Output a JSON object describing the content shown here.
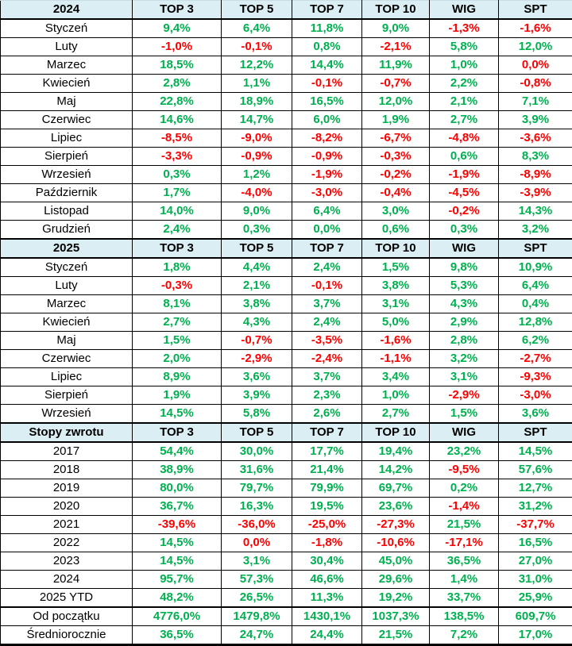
{
  "colors": {
    "positive": "#00B050",
    "negative": "#FF0000",
    "header_background": "#DAEEF3",
    "grid": "#000000"
  },
  "chart_data": {
    "type": "table",
    "value_columns": [
      "TOP 3",
      "TOP 5",
      "TOP 7",
      "TOP 10",
      "WIG",
      "SPT"
    ],
    "sections": [
      {
        "header": "2024",
        "rows": [
          {
            "label": "Styczeń",
            "values": [
              "9,4%",
              "6,4%",
              "11,8%",
              "9,0%",
              "-1,3%",
              "-1,6%"
            ],
            "colors": [
              "g",
              "g",
              "g",
              "g",
              "r",
              "r"
            ]
          },
          {
            "label": "Luty",
            "values": [
              "-1,0%",
              "-0,1%",
              "0,8%",
              "-2,1%",
              "5,8%",
              "12,0%"
            ],
            "colors": [
              "r",
              "r",
              "g",
              "r",
              "g",
              "g"
            ]
          },
          {
            "label": "Marzec",
            "values": [
              "18,5%",
              "12,2%",
              "14,4%",
              "11,9%",
              "1,0%",
              "0,0%"
            ],
            "colors": [
              "g",
              "g",
              "g",
              "g",
              "g",
              "r"
            ]
          },
          {
            "label": "Kwiecień",
            "values": [
              "2,8%",
              "1,1%",
              "-0,1%",
              "-0,7%",
              "2,2%",
              "-0,8%"
            ],
            "colors": [
              "g",
              "g",
              "r",
              "r",
              "g",
              "r"
            ]
          },
          {
            "label": "Maj",
            "values": [
              "22,8%",
              "18,9%",
              "16,5%",
              "12,0%",
              "2,1%",
              "7,1%"
            ],
            "colors": [
              "g",
              "g",
              "g",
              "g",
              "g",
              "g"
            ]
          },
          {
            "label": "Czerwiec",
            "values": [
              "14,6%",
              "14,7%",
              "6,0%",
              "1,9%",
              "2,7%",
              "3,9%"
            ],
            "colors": [
              "g",
              "g",
              "g",
              "g",
              "g",
              "g"
            ]
          },
          {
            "label": "Lipiec",
            "values": [
              "-8,5%",
              "-9,0%",
              "-8,2%",
              "-6,7%",
              "-4,8%",
              "-3,6%"
            ],
            "colors": [
              "r",
              "r",
              "r",
              "r",
              "r",
              "r"
            ]
          },
          {
            "label": "Sierpień",
            "values": [
              "-3,3%",
              "-0,9%",
              "-0,9%",
              "-0,3%",
              "0,6%",
              "8,3%"
            ],
            "colors": [
              "r",
              "r",
              "r",
              "r",
              "g",
              "g"
            ]
          },
          {
            "label": "Wrzesień",
            "values": [
              "0,3%",
              "1,2%",
              "-1,9%",
              "-0,2%",
              "-1,9%",
              "-8,9%"
            ],
            "colors": [
              "g",
              "g",
              "r",
              "r",
              "r",
              "r"
            ]
          },
          {
            "label": "Październik",
            "values": [
              "1,7%",
              "-4,0%",
              "-3,0%",
              "-0,4%",
              "-4,5%",
              "-3,9%"
            ],
            "colors": [
              "g",
              "r",
              "r",
              "r",
              "r",
              "r"
            ]
          },
          {
            "label": "Listopad",
            "values": [
              "14,0%",
              "9,0%",
              "6,4%",
              "3,0%",
              "-0,2%",
              "14,3%"
            ],
            "colors": [
              "g",
              "g",
              "g",
              "g",
              "r",
              "g"
            ]
          },
          {
            "label": "Grudzień",
            "values": [
              "2,4%",
              "0,3%",
              "0,0%",
              "0,6%",
              "0,3%",
              "3,2%"
            ],
            "colors": [
              "g",
              "g",
              "g",
              "g",
              "g",
              "g"
            ]
          }
        ]
      },
      {
        "header": "2025",
        "rows": [
          {
            "label": "Styczeń",
            "values": [
              "1,8%",
              "4,4%",
              "2,4%",
              "1,5%",
              "9,8%",
              "10,9%"
            ],
            "colors": [
              "g",
              "g",
              "g",
              "g",
              "g",
              "g"
            ]
          },
          {
            "label": "Luty",
            "values": [
              "-0,3%",
              "2,1%",
              "-0,1%",
              "3,8%",
              "5,3%",
              "6,4%"
            ],
            "colors": [
              "r",
              "g",
              "r",
              "g",
              "g",
              "g"
            ]
          },
          {
            "label": "Marzec",
            "values": [
              "8,1%",
              "3,8%",
              "3,7%",
              "3,1%",
              "4,3%",
              "0,4%"
            ],
            "colors": [
              "g",
              "g",
              "g",
              "g",
              "g",
              "g"
            ]
          },
          {
            "label": "Kwiecień",
            "values": [
              "2,7%",
              "4,3%",
              "2,4%",
              "5,0%",
              "2,9%",
              "12,8%"
            ],
            "colors": [
              "g",
              "g",
              "g",
              "g",
              "g",
              "g"
            ]
          },
          {
            "label": "Maj",
            "values": [
              "1,5%",
              "-0,7%",
              "-3,5%",
              "-1,6%",
              "2,8%",
              "6,2%"
            ],
            "colors": [
              "g",
              "r",
              "r",
              "r",
              "g",
              "g"
            ]
          },
          {
            "label": "Czerwiec",
            "values": [
              "2,0%",
              "-2,9%",
              "-2,4%",
              "-1,1%",
              "3,2%",
              "-2,7%"
            ],
            "colors": [
              "g",
              "r",
              "r",
              "r",
              "g",
              "r"
            ]
          },
          {
            "label": "Lipiec",
            "values": [
              "8,9%",
              "3,6%",
              "3,7%",
              "3,4%",
              "3,1%",
              "-9,3%"
            ],
            "colors": [
              "g",
              "g",
              "g",
              "g",
              "g",
              "r"
            ]
          },
          {
            "label": "Sierpień",
            "values": [
              "1,9%",
              "3,9%",
              "2,3%",
              "1,0%",
              "-2,9%",
              "-3,0%"
            ],
            "colors": [
              "g",
              "g",
              "g",
              "g",
              "r",
              "r"
            ]
          },
          {
            "label": "Wrzesień",
            "values": [
              "14,5%",
              "5,8%",
              "2,6%",
              "2,7%",
              "1,5%",
              "3,6%"
            ],
            "colors": [
              "g",
              "g",
              "g",
              "g",
              "g",
              "g"
            ]
          }
        ]
      },
      {
        "header": "Stopy zwrotu",
        "rows": [
          {
            "label": "2017",
            "values": [
              "54,4%",
              "30,0%",
              "17,7%",
              "19,4%",
              "23,2%",
              "14,5%"
            ],
            "colors": [
              "g",
              "g",
              "g",
              "g",
              "g",
              "g"
            ]
          },
          {
            "label": "2018",
            "values": [
              "38,9%",
              "31,6%",
              "21,4%",
              "14,2%",
              "-9,5%",
              "57,6%"
            ],
            "colors": [
              "g",
              "g",
              "g",
              "g",
              "r",
              "g"
            ]
          },
          {
            "label": "2019",
            "values": [
              "80,0%",
              "79,7%",
              "79,9%",
              "69,7%",
              "0,2%",
              "12,7%"
            ],
            "colors": [
              "g",
              "g",
              "g",
              "g",
              "g",
              "g"
            ]
          },
          {
            "label": "2020",
            "values": [
              "36,7%",
              "16,3%",
              "19,5%",
              "23,6%",
              "-1,4%",
              "31,2%"
            ],
            "colors": [
              "g",
              "g",
              "g",
              "g",
              "r",
              "g"
            ]
          },
          {
            "label": "2021",
            "values": [
              "-39,6%",
              "-36,0%",
              "-25,0%",
              "-27,3%",
              "21,5%",
              "-37,7%"
            ],
            "colors": [
              "r",
              "r",
              "r",
              "r",
              "g",
              "r"
            ]
          },
          {
            "label": "2022",
            "values": [
              "14,5%",
              "0,0%",
              "-1,8%",
              "-10,6%",
              "-17,1%",
              "16,5%"
            ],
            "colors": [
              "g",
              "r",
              "r",
              "r",
              "r",
              "g"
            ]
          },
          {
            "label": "2023",
            "values": [
              "14,5%",
              "3,1%",
              "30,4%",
              "45,0%",
              "36,5%",
              "27,0%"
            ],
            "colors": [
              "g",
              "g",
              "g",
              "g",
              "g",
              "g"
            ]
          },
          {
            "label": "2024",
            "values": [
              "95,7%",
              "57,3%",
              "46,6%",
              "29,6%",
              "1,4%",
              "31,0%"
            ],
            "colors": [
              "g",
              "g",
              "g",
              "g",
              "g",
              "g"
            ]
          },
          {
            "label": "2025 YTD",
            "values": [
              "48,2%",
              "26,5%",
              "11,3%",
              "19,2%",
              "33,7%",
              "25,9%"
            ],
            "colors": [
              "g",
              "g",
              "g",
              "g",
              "g",
              "g"
            ]
          }
        ],
        "summary_rows": [
          {
            "label": "Od początku",
            "values": [
              "4776,0%",
              "1479,8%",
              "1430,1%",
              "1037,3%",
              "138,5%",
              "609,7%"
            ],
            "colors": [
              "g",
              "g",
              "g",
              "g",
              "g",
              "g"
            ]
          },
          {
            "label": "Średniorocznie",
            "values": [
              "36,5%",
              "24,7%",
              "24,4%",
              "21,5%",
              "7,2%",
              "17,0%"
            ],
            "colors": [
              "g",
              "g",
              "g",
              "g",
              "g",
              "g"
            ]
          }
        ]
      }
    ]
  }
}
